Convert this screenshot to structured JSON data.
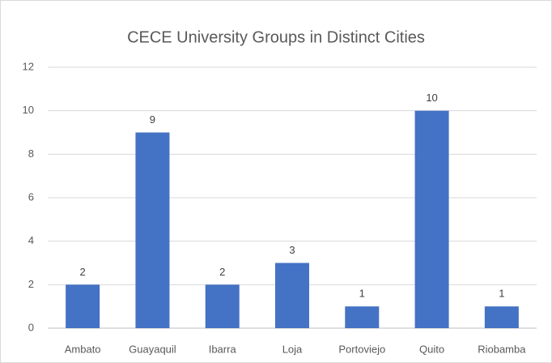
{
  "chart_data": {
    "type": "bar",
    "title": "CECE University Groups in Distinct Cities",
    "categories": [
      "Ambato",
      "Guayaquil",
      "Ibarra",
      "Loja",
      "Portoviejo",
      "Quito",
      "Riobamba"
    ],
    "values": [
      2,
      9,
      2,
      3,
      1,
      10,
      1
    ],
    "color": "#4472c4",
    "ylim": [
      0,
      12
    ],
    "yticks": [
      0,
      2,
      4,
      6,
      8,
      10,
      12
    ],
    "grid": true
  }
}
